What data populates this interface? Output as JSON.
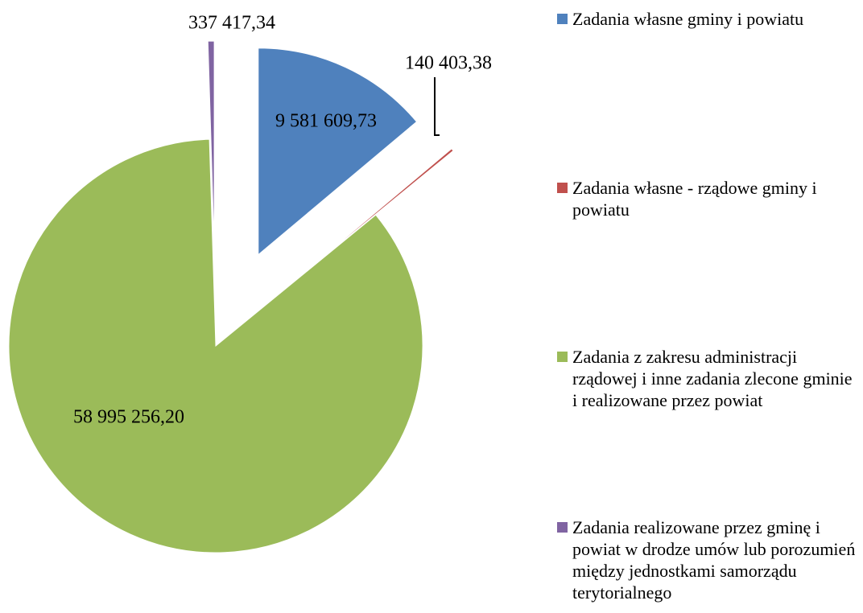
{
  "chart_data": {
    "type": "pie",
    "categories": [
      "Zadania własne gminy i powiatu",
      "Zadania własne - rządowe gminy i powiatu",
      "Zadania z zakresu administracji rządowej i inne zadania zlecone gminie i realizowane przez powiat",
      "Zadania realizowane przez gminę i powiat w drodze umów lub porozumień między jednostkami samorządu terytorialnego"
    ],
    "values": [
      9581609.73,
      140403.38,
      58995256.2,
      337417.34
    ],
    "value_labels": [
      "9 581 609,73",
      "140 403,38",
      "58 995 256,20",
      "337 417,34"
    ],
    "colors": [
      "#4f81bd",
      "#c0504d",
      "#9bbb59",
      "#8064a2"
    ],
    "legend": "right"
  }
}
